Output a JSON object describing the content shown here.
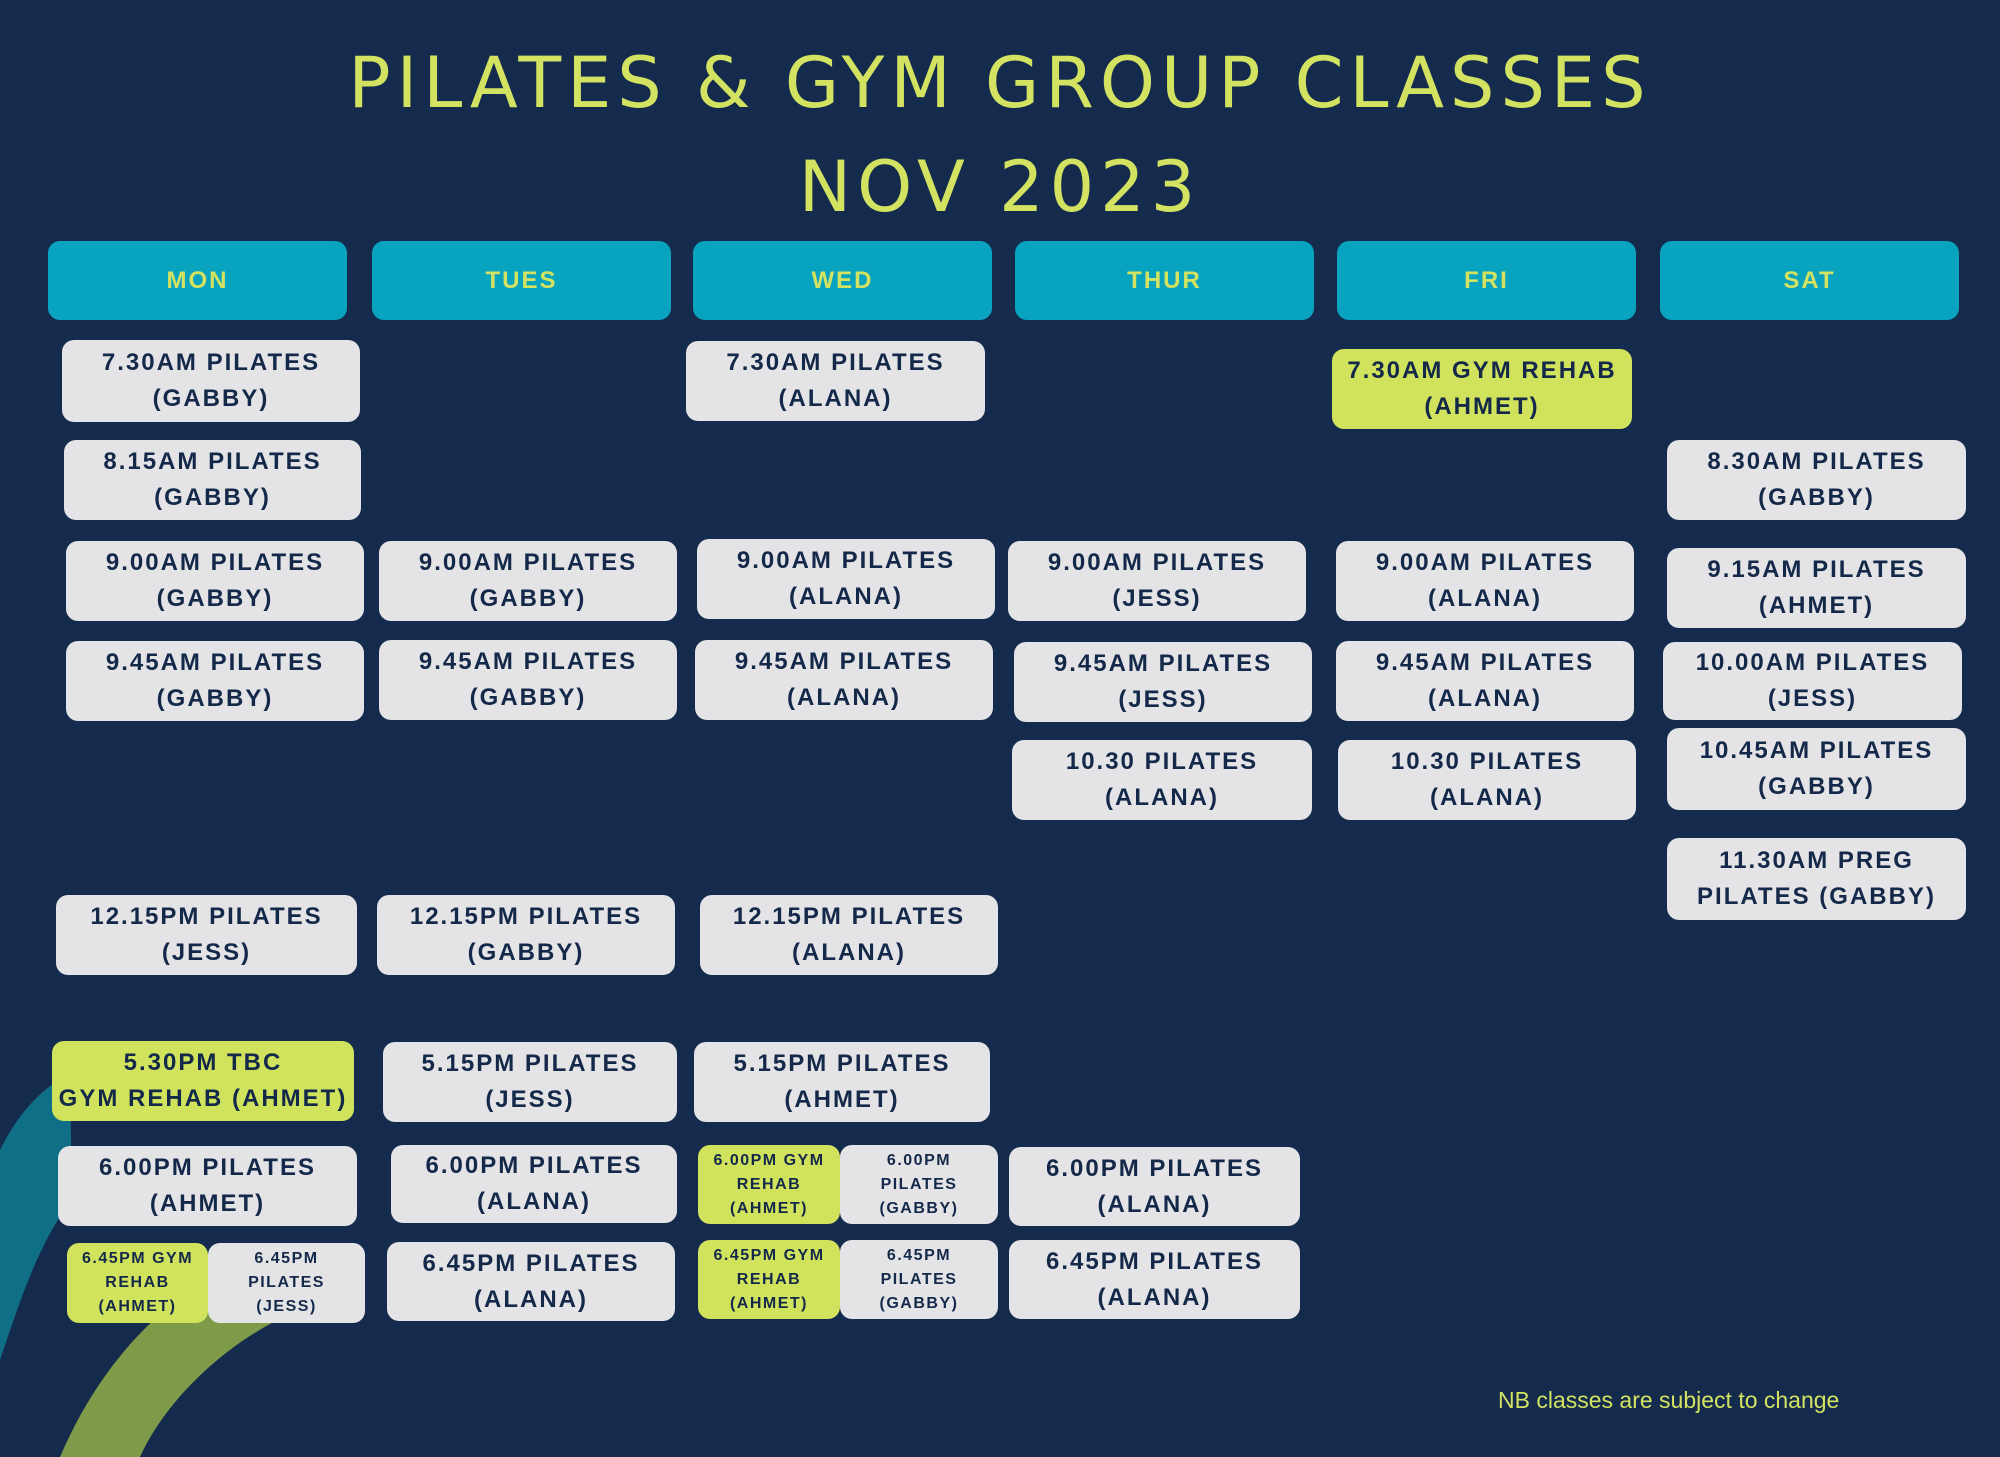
{
  "header": {
    "title_line1": "PILATES & GYM GROUP CLASSES",
    "title_line2": "NOV 2023"
  },
  "days": [
    "MON",
    "TUES",
    "WED",
    "THUR",
    "FRI",
    "SAT"
  ],
  "classes": {
    "mon_1": [
      "7.30AM PILATES",
      "(GABBY)"
    ],
    "mon_2": [
      "8.15AM PILATES",
      "(GABBY)"
    ],
    "mon_3": [
      "9.00AM PILATES",
      "(GABBY)"
    ],
    "mon_4": [
      "9.45AM PILATES",
      "(GABBY)"
    ],
    "mon_5": [
      "12.15PM PILATES",
      "(JESS)"
    ],
    "mon_6": [
      "5.30PM TBC",
      "GYM REHAB (AHMET)"
    ],
    "mon_7": [
      "6.00PM PILATES",
      "(AHMET)"
    ],
    "mon_8a": [
      "6.45PM GYM",
      "REHAB",
      "(AHMET)"
    ],
    "mon_8b": [
      "6.45PM",
      "PILATES",
      "(JESS)"
    ],
    "tue_1": [
      "9.00AM PILATES",
      "(GABBY)"
    ],
    "tue_2": [
      "9.45AM PILATES",
      "(GABBY)"
    ],
    "tue_3": [
      "12.15PM PILATES",
      "(GABBY)"
    ],
    "tue_4": [
      "5.15PM PILATES",
      "(JESS)"
    ],
    "tue_5": [
      "6.00PM PILATES",
      "(ALANA)"
    ],
    "tue_6": [
      "6.45PM PILATES",
      "(ALANA)"
    ],
    "wed_1": [
      "7.30AM PILATES",
      "(ALANA)"
    ],
    "wed_2": [
      "9.00AM PILATES",
      "(ALANA)"
    ],
    "wed_3": [
      "9.45AM PILATES",
      "(ALANA)"
    ],
    "wed_4": [
      "12.15PM PILATES",
      "(ALANA)"
    ],
    "wed_5": [
      "5.15PM PILATES",
      "(AHMET)"
    ],
    "wed_6a": [
      "6.00PM GYM",
      "REHAB",
      "(AHMET)"
    ],
    "wed_6b": [
      "6.00PM",
      "PILATES",
      "(GABBY)"
    ],
    "wed_7a": [
      "6.45PM GYM",
      "REHAB",
      "(AHMET)"
    ],
    "wed_7b": [
      "6.45PM",
      "PILATES",
      "(GABBY)"
    ],
    "thu_1": [
      "9.00AM PILATES",
      "(JESS)"
    ],
    "thu_2": [
      "9.45AM PILATES",
      "(JESS)"
    ],
    "thu_3": [
      "10.30 PILATES",
      "(ALANA)"
    ],
    "thu_4": [
      "6.00PM PILATES",
      "(ALANA)"
    ],
    "thu_5": [
      "6.45PM PILATES",
      "(ALANA)"
    ],
    "fri_1": [
      "7.30AM GYM REHAB",
      "(AHMET)"
    ],
    "fri_2": [
      "9.00AM PILATES",
      "(ALANA)"
    ],
    "fri_3": [
      "9.45AM PILATES",
      "(ALANA)"
    ],
    "fri_4": [
      "10.30 PILATES",
      "(ALANA)"
    ],
    "sat_1": [
      "8.30AM PILATES",
      "(GABBY)"
    ],
    "sat_2": [
      "9.15AM PILATES",
      "(AHMET)"
    ],
    "sat_3": [
      "10.00AM PILATES",
      "(JESS)"
    ],
    "sat_4": [
      "10.45AM PILATES",
      "(GABBY)"
    ],
    "sat_5": [
      "11.30AM PREG",
      "PILATES (GABBY)"
    ]
  },
  "footer": {
    "note": "NB classes are subject to change"
  },
  "colors": {
    "background": "#142b4d",
    "accent_lime": "#d3e361",
    "day_header": "#08a3bf",
    "card": "#e4e4e6",
    "card_text": "#14294a",
    "gym_rehab_card": "#d1e35d"
  }
}
